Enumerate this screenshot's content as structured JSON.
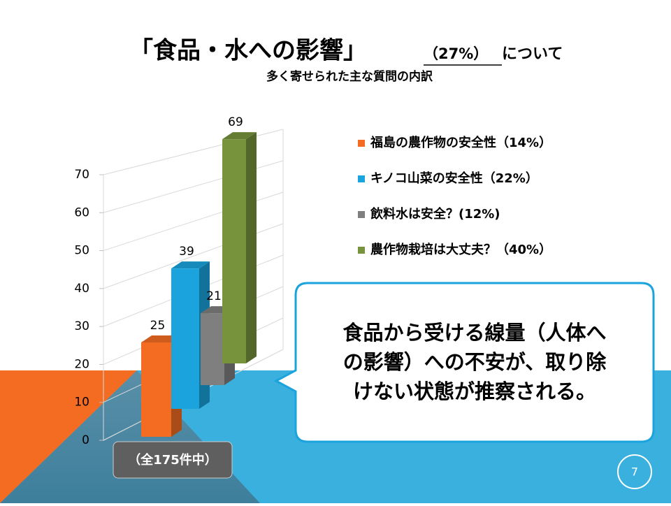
{
  "chart_data": {
    "type": "bar3d",
    "title": "「食品・水への影響」",
    "title_share": "（27%）",
    "title_suffix": "について",
    "subtitle": "多く寄せられた主な質問の内訳",
    "series": [
      {
        "name": "福島の農作物の安全性（14%）",
        "color": "#f36c21",
        "values": [
          25
        ]
      },
      {
        "name": "キノコ山菜の安全性（22%）",
        "color": "#1aa3dc",
        "values": [
          39
        ]
      },
      {
        "name": "飲料水は安全？(12%)",
        "color": "#7f7f7f",
        "values": [
          21
        ]
      },
      {
        "name": "農作物栽培は大丈夫？（40%）",
        "color": "#77933c",
        "values": [
          69
        ]
      }
    ],
    "ylim": [
      0,
      70
    ],
    "yticks": [
      0,
      10,
      20,
      30,
      40,
      50,
      60,
      70
    ],
    "grid": true,
    "legend": "right",
    "annotations": {
      "callout": [
        "食品から受ける線量（人体へ",
        "の影響）への不安が、取り除",
        "けない状態が推察される。"
      ],
      "total": "（全175件中）"
    }
  },
  "slide": {
    "page": "7"
  }
}
